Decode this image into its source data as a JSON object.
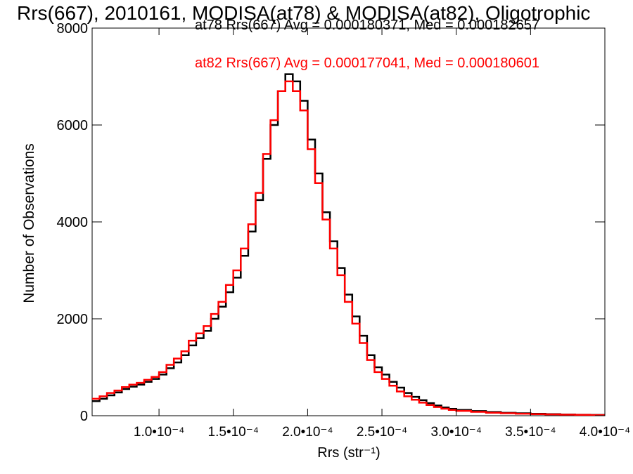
{
  "chart_data": {
    "type": "line",
    "title": "Rrs(667), 2010161, MODISA(at78) & MODISA(at82), Oligotrophic",
    "xlabel": "Rrs (str⁻¹)",
    "ylabel": "Number of Observations",
    "xlim": [
      5.5e-05,
      0.0004
    ],
    "ylim": [
      0,
      8000
    ],
    "x_ticks": [
      {
        "value": 0.0001,
        "label": "1.0•10⁻⁴"
      },
      {
        "value": 0.00015,
        "label": "1.5•10⁻⁴"
      },
      {
        "value": 0.0002,
        "label": "2.0•10⁻⁴"
      },
      {
        "value": 0.00025,
        "label": "2.5•10⁻⁴"
      },
      {
        "value": 0.0003,
        "label": "3.0•10⁻⁴"
      },
      {
        "value": 0.00035,
        "label": "3.5•10⁻⁴"
      },
      {
        "value": 0.0004,
        "label": "4.0•10⁻⁴"
      }
    ],
    "y_ticks": [
      {
        "value": 0,
        "label": "0"
      },
      {
        "value": 2000,
        "label": "2000"
      },
      {
        "value": 4000,
        "label": "4000"
      },
      {
        "value": 6000,
        "label": "6000"
      },
      {
        "value": 8000,
        "label": "8000"
      }
    ],
    "series": [
      {
        "name": "at78",
        "annotation": "at78 Rrs(667) Avg = 0.000180371, Med = 0.000182657",
        "color": "#000000",
        "points": [
          [
            5.5e-05,
            300
          ],
          [
            6e-05,
            350
          ],
          [
            6.5e-05,
            420
          ],
          [
            7e-05,
            480
          ],
          [
            7.5e-05,
            550
          ],
          [
            8e-05,
            600
          ],
          [
            8.5e-05,
            640
          ],
          [
            9e-05,
            700
          ],
          [
            9.5e-05,
            760
          ],
          [
            0.0001,
            850
          ],
          [
            0.000105,
            980
          ],
          [
            0.00011,
            1100
          ],
          [
            0.000115,
            1250
          ],
          [
            0.00012,
            1450
          ],
          [
            0.000125,
            1600
          ],
          [
            0.00013,
            1750
          ],
          [
            0.000135,
            2000
          ],
          [
            0.00014,
            2250
          ],
          [
            0.000145,
            2550
          ],
          [
            0.00015,
            2850
          ],
          [
            0.000155,
            3300
          ],
          [
            0.00016,
            3800
          ],
          [
            0.000165,
            4450
          ],
          [
            0.00017,
            5300
          ],
          [
            0.000175,
            6000
          ],
          [
            0.00018,
            6700
          ],
          [
            0.000185,
            7050
          ],
          [
            0.00019,
            6900
          ],
          [
            0.000195,
            6500
          ],
          [
            0.0002,
            5700
          ],
          [
            0.000205,
            5000
          ],
          [
            0.00021,
            4200
          ],
          [
            0.000215,
            3600
          ],
          [
            0.00022,
            3050
          ],
          [
            0.000225,
            2500
          ],
          [
            0.00023,
            2050
          ],
          [
            0.000235,
            1650
          ],
          [
            0.00024,
            1250
          ],
          [
            0.000245,
            1000
          ],
          [
            0.00025,
            850
          ],
          [
            0.000255,
            700
          ],
          [
            0.00026,
            580
          ],
          [
            0.000265,
            470
          ],
          [
            0.00027,
            390
          ],
          [
            0.000275,
            320
          ],
          [
            0.00028,
            260
          ],
          [
            0.000285,
            210
          ],
          [
            0.00029,
            170
          ],
          [
            0.000295,
            140
          ],
          [
            0.0003,
            120
          ],
          [
            0.00031,
            95
          ],
          [
            0.00032,
            75
          ],
          [
            0.00033,
            60
          ],
          [
            0.00034,
            50
          ],
          [
            0.00035,
            40
          ],
          [
            0.00036,
            32
          ],
          [
            0.00037,
            26
          ],
          [
            0.00038,
            20
          ],
          [
            0.00039,
            16
          ],
          [
            0.0004,
            12
          ]
        ]
      },
      {
        "name": "at82",
        "annotation": "at82 Rrs(667) Avg = 0.000177041, Med = 0.000180601",
        "color": "#ff0000",
        "points": [
          [
            5.5e-05,
            350
          ],
          [
            6e-05,
            400
          ],
          [
            6.5e-05,
            470
          ],
          [
            7e-05,
            520
          ],
          [
            7.5e-05,
            590
          ],
          [
            8e-05,
            640
          ],
          [
            8.5e-05,
            680
          ],
          [
            9e-05,
            740
          ],
          [
            9.5e-05,
            800
          ],
          [
            0.0001,
            900
          ],
          [
            0.000105,
            1050
          ],
          [
            0.00011,
            1180
          ],
          [
            0.000115,
            1330
          ],
          [
            0.00012,
            1550
          ],
          [
            0.000125,
            1700
          ],
          [
            0.00013,
            1850
          ],
          [
            0.000135,
            2100
          ],
          [
            0.00014,
            2350
          ],
          [
            0.000145,
            2700
          ],
          [
            0.00015,
            3000
          ],
          [
            0.000155,
            3450
          ],
          [
            0.00016,
            3950
          ],
          [
            0.000165,
            4600
          ],
          [
            0.00017,
            5400
          ],
          [
            0.000175,
            6100
          ],
          [
            0.00018,
            6700
          ],
          [
            0.000185,
            6900
          ],
          [
            0.00019,
            6700
          ],
          [
            0.000195,
            6300
          ],
          [
            0.0002,
            5500
          ],
          [
            0.000205,
            4800
          ],
          [
            0.00021,
            4050
          ],
          [
            0.000215,
            3450
          ],
          [
            0.00022,
            2900
          ],
          [
            0.000225,
            2350
          ],
          [
            0.00023,
            1900
          ],
          [
            0.000235,
            1500
          ],
          [
            0.00024,
            1150
          ],
          [
            0.000245,
            900
          ],
          [
            0.00025,
            760
          ],
          [
            0.000255,
            620
          ],
          [
            0.00026,
            500
          ],
          [
            0.000265,
            400
          ],
          [
            0.00027,
            330
          ],
          [
            0.000275,
            270
          ],
          [
            0.00028,
            220
          ],
          [
            0.000285,
            180
          ],
          [
            0.00029,
            145
          ],
          [
            0.000295,
            120
          ],
          [
            0.0003,
            100
          ],
          [
            0.00031,
            80
          ],
          [
            0.00032,
            62
          ],
          [
            0.00033,
            50
          ],
          [
            0.00034,
            42
          ],
          [
            0.00035,
            34
          ],
          [
            0.00036,
            27
          ],
          [
            0.00037,
            22
          ],
          [
            0.00038,
            17
          ],
          [
            0.00039,
            13
          ],
          [
            0.0004,
            10
          ]
        ]
      }
    ],
    "grid": false
  }
}
